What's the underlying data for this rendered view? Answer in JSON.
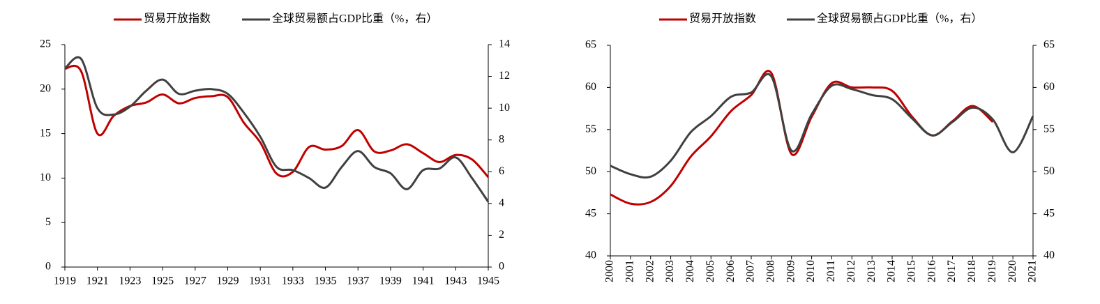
{
  "chart_data": [
    {
      "type": "line",
      "x": [
        1919,
        1920,
        1921,
        1922,
        1923,
        1924,
        1925,
        1926,
        1927,
        1928,
        1929,
        1930,
        1931,
        1932,
        1933,
        1934,
        1935,
        1936,
        1937,
        1938,
        1939,
        1940,
        1941,
        1942,
        1943,
        1944,
        1945
      ],
      "xlim": [
        1919,
        1945
      ],
      "xticks": [
        1919,
        1921,
        1923,
        1925,
        1927,
        1929,
        1931,
        1933,
        1935,
        1937,
        1939,
        1941,
        1943,
        1945
      ],
      "ylim": [
        0,
        25
      ],
      "yticks": [
        0,
        5,
        10,
        15,
        20,
        25
      ],
      "y2lim": [
        0,
        14
      ],
      "y2ticks": [
        0,
        2,
        4,
        6,
        8,
        10,
        12,
        14
      ],
      "legend": "top",
      "series": [
        {
          "name": "贸易开放指数",
          "color": "#c00000",
          "axis": "y",
          "values": [
            22.3,
            22,
            15,
            17,
            18.1,
            18.5,
            19.4,
            18.4,
            19,
            19.2,
            19.1,
            16.2,
            14,
            10.5,
            10.7,
            13.5,
            13.2,
            13.6,
            15.4,
            13,
            13.1,
            13.8,
            12.8,
            11.8,
            12.6,
            12.1,
            10.1
          ]
        },
        {
          "name": "全球贸易额占GDP比重（%，右）",
          "color": "#404040",
          "axis": "y2",
          "values": [
            12.5,
            13.1,
            10,
            9.6,
            10.1,
            11.1,
            11.8,
            10.9,
            11.1,
            11.2,
            10.9,
            9.7,
            8.2,
            6.3,
            6.1,
            5.6,
            5,
            6.3,
            7.3,
            6.3,
            5.9,
            4.9,
            6.1,
            6.2,
            6.9,
            5.6,
            4.1
          ]
        }
      ]
    },
    {
      "type": "line",
      "x": [
        2000,
        2001,
        2002,
        2003,
        2004,
        2005,
        2006,
        2007,
        2008,
        2009,
        2010,
        2011,
        2012,
        2013,
        2014,
        2015,
        2016,
        2017,
        2018,
        2019,
        2020,
        2021
      ],
      "xlim": [
        2000,
        2021
      ],
      "xticks": [
        2000,
        2001,
        2002,
        2003,
        2004,
        2005,
        2006,
        2007,
        2008,
        2009,
        2010,
        2011,
        2012,
        2013,
        2014,
        2015,
        2016,
        2017,
        2018,
        2019,
        2020,
        2021
      ],
      "ylim": [
        40,
        65
      ],
      "yticks": [
        40,
        45,
        50,
        55,
        60,
        65
      ],
      "y2lim": [
        40,
        65
      ],
      "y2ticks": [
        40,
        45,
        50,
        55,
        60,
        65
      ],
      "legend": "top",
      "series": [
        {
          "name": "贸易开放指数",
          "color": "#c00000",
          "axis": "y",
          "values": [
            47.3,
            46.2,
            46.4,
            48.3,
            51.8,
            54.2,
            57.2,
            59.1,
            61.7,
            52.1,
            56.5,
            60.5,
            60,
            60,
            59.6,
            56.5,
            54.3,
            56,
            57.8,
            55.9,
            null,
            null
          ]
        },
        {
          "name": "全球贸易额占GDP比重（%，右）",
          "color": "#404040",
          "axis": "y2",
          "values": [
            50.7,
            49.7,
            49.4,
            51.3,
            54.7,
            56.6,
            58.9,
            59.4,
            61.3,
            52.5,
            56.8,
            60.2,
            59.8,
            59.1,
            58.6,
            56.3,
            54.3,
            55.9,
            57.6,
            56.2,
            52.3,
            56.6
          ]
        }
      ]
    }
  ]
}
